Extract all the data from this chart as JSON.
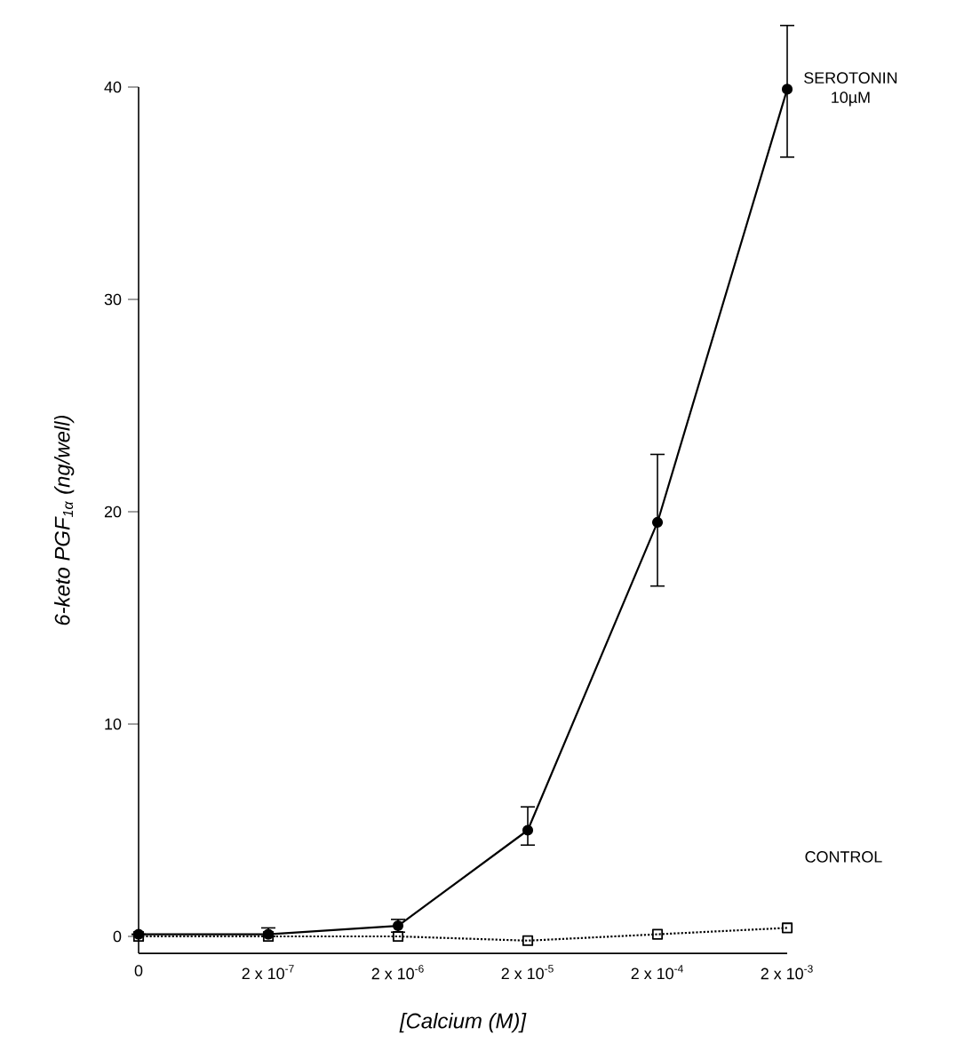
{
  "chart_data": {
    "type": "line",
    "xlabel": "[Calcium (M)]",
    "ylabel": "6-keto PGF$_{1α}$ (ng/well)",
    "categories": [
      "0",
      "2 x 10$^{-7}$",
      "2 x 10$^{-6}$",
      "2 x 10$^{-5}$",
      "2 x 10$^{-4}$",
      "2 x 10$^{-3}$"
    ],
    "ylim": [
      -0.8,
      40
    ],
    "yticks": [
      0,
      10,
      20,
      30,
      40
    ],
    "series": [
      {
        "name": "SEROTONIN 10µM",
        "color": "#000000",
        "marker": "circle",
        "line_style": "solid",
        "values": [
          0.1,
          0.1,
          0.5,
          5.0,
          19.5,
          39.9
        ],
        "errors": [
          null,
          [
            0.0,
            0.4
          ],
          [
            0.2,
            0.8
          ],
          [
            4.3,
            6.1
          ],
          [
            16.5,
            22.7
          ],
          [
            36.7,
            42.9
          ]
        ]
      },
      {
        "name": "CONTROL",
        "color": "#000000",
        "marker": "square",
        "line_style": "dotted",
        "values": [
          0.0,
          0.0,
          0.0,
          -0.2,
          0.1,
          0.4
        ]
      }
    ]
  }
}
